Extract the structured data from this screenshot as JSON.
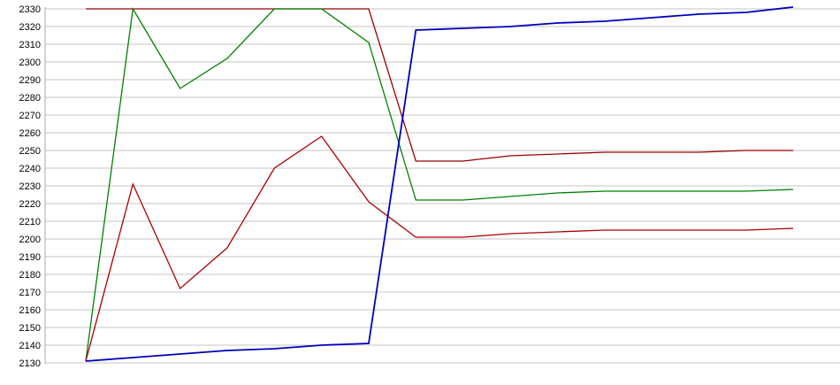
{
  "chart_data": {
    "type": "line",
    "title": "",
    "xlabel": "",
    "ylabel": "",
    "x": [
      1,
      2,
      3,
      4,
      5,
      6,
      7,
      8,
      9,
      10,
      11,
      12,
      13,
      14,
      15,
      16
    ],
    "series": [
      {
        "name": "dark-red",
        "color": "#990000",
        "values": [
          2330,
          2330,
          2330,
          2330,
          2330,
          2330,
          2330,
          2244,
          2244,
          2247,
          2248,
          2249,
          2249,
          2249,
          2250,
          2250
        ]
      },
      {
        "name": "green",
        "color": "#008000",
        "values": [
          2131,
          2330,
          2285,
          2302,
          2330,
          2330,
          2311,
          2222,
          2222,
          2224,
          2226,
          2227,
          2227,
          2227,
          2227,
          2228
        ]
      },
      {
        "name": "red",
        "color": "#aa0000",
        "values": [
          2131,
          2231,
          2172,
          2195,
          2240,
          2258,
          2221,
          2201,
          2201,
          2203,
          2204,
          2205,
          2205,
          2205,
          2205,
          2206
        ]
      },
      {
        "name": "blue",
        "color": "#0000bb",
        "values": [
          2131,
          2133,
          2135,
          2137,
          2138,
          2140,
          2141,
          2318,
          2319,
          2320,
          2322,
          2323,
          2325,
          2327,
          2328,
          2331
        ]
      }
    ],
    "ylim": [
      2130,
      2330
    ],
    "ytick_step": 10,
    "y_ticks": [
      2330,
      2320,
      2310,
      2300,
      2290,
      2280,
      2270,
      2260,
      2250,
      2240,
      2230,
      2220,
      2210,
      2200,
      2190,
      2180,
      2170,
      2160,
      2150,
      2140,
      2130
    ],
    "grid": "horizontal",
    "gridline_color": "#c6c6c6",
    "axis_color": "#aaaaaa",
    "tick_label_color": "#000000",
    "background": "#ffffff",
    "legend": "none"
  }
}
